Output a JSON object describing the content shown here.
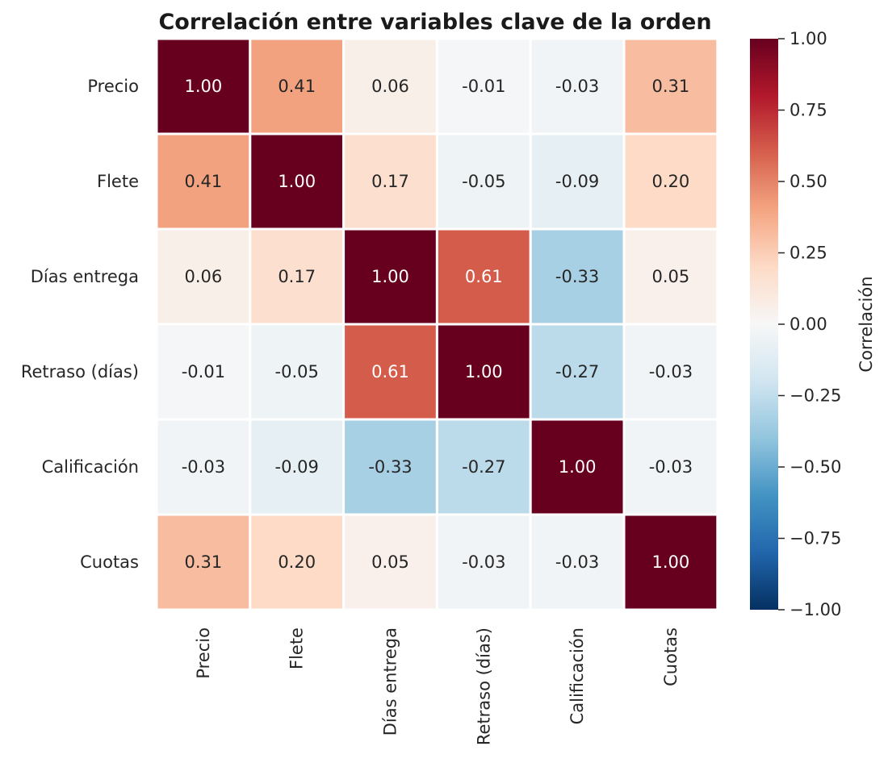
{
  "chart_data": {
    "type": "heatmap",
    "title": "Correlación entre variables clave de la orden",
    "rows": [
      "Precio",
      "Flete",
      "Días entrega",
      "Retraso (días)",
      "Calificación",
      "Cuotas"
    ],
    "columns": [
      "Precio",
      "Flete",
      "Días entrega",
      "Retraso (días)",
      "Calificación",
      "Cuotas"
    ],
    "values": [
      [
        1.0,
        0.41,
        0.06,
        -0.01,
        -0.03,
        0.31
      ],
      [
        0.41,
        1.0,
        0.17,
        -0.05,
        -0.09,
        0.2
      ],
      [
        0.06,
        0.17,
        1.0,
        0.61,
        -0.33,
        0.05
      ],
      [
        -0.01,
        -0.05,
        0.61,
        1.0,
        -0.27,
        -0.03
      ],
      [
        -0.03,
        -0.09,
        -0.33,
        -0.27,
        1.0,
        -0.03
      ],
      [
        0.31,
        0.2,
        0.05,
        -0.03,
        -0.03,
        1.0
      ]
    ],
    "value_format": "0.00",
    "colormap": "RdBu_r",
    "vmin": -1.0,
    "vmax": 1.0,
    "colorbar": {
      "label": "Correlación",
      "ticks": [
        1.0,
        0.75,
        0.5,
        0.25,
        0.0,
        -0.25,
        -0.5,
        -0.75,
        -1.0
      ],
      "tick_labels": [
        "1.00",
        "0.75",
        "0.50",
        "0.25",
        "0.00",
        "−0.25",
        "−0.50",
        "−0.75",
        "−1.00"
      ],
      "placement": "right"
    },
    "grid": false
  }
}
